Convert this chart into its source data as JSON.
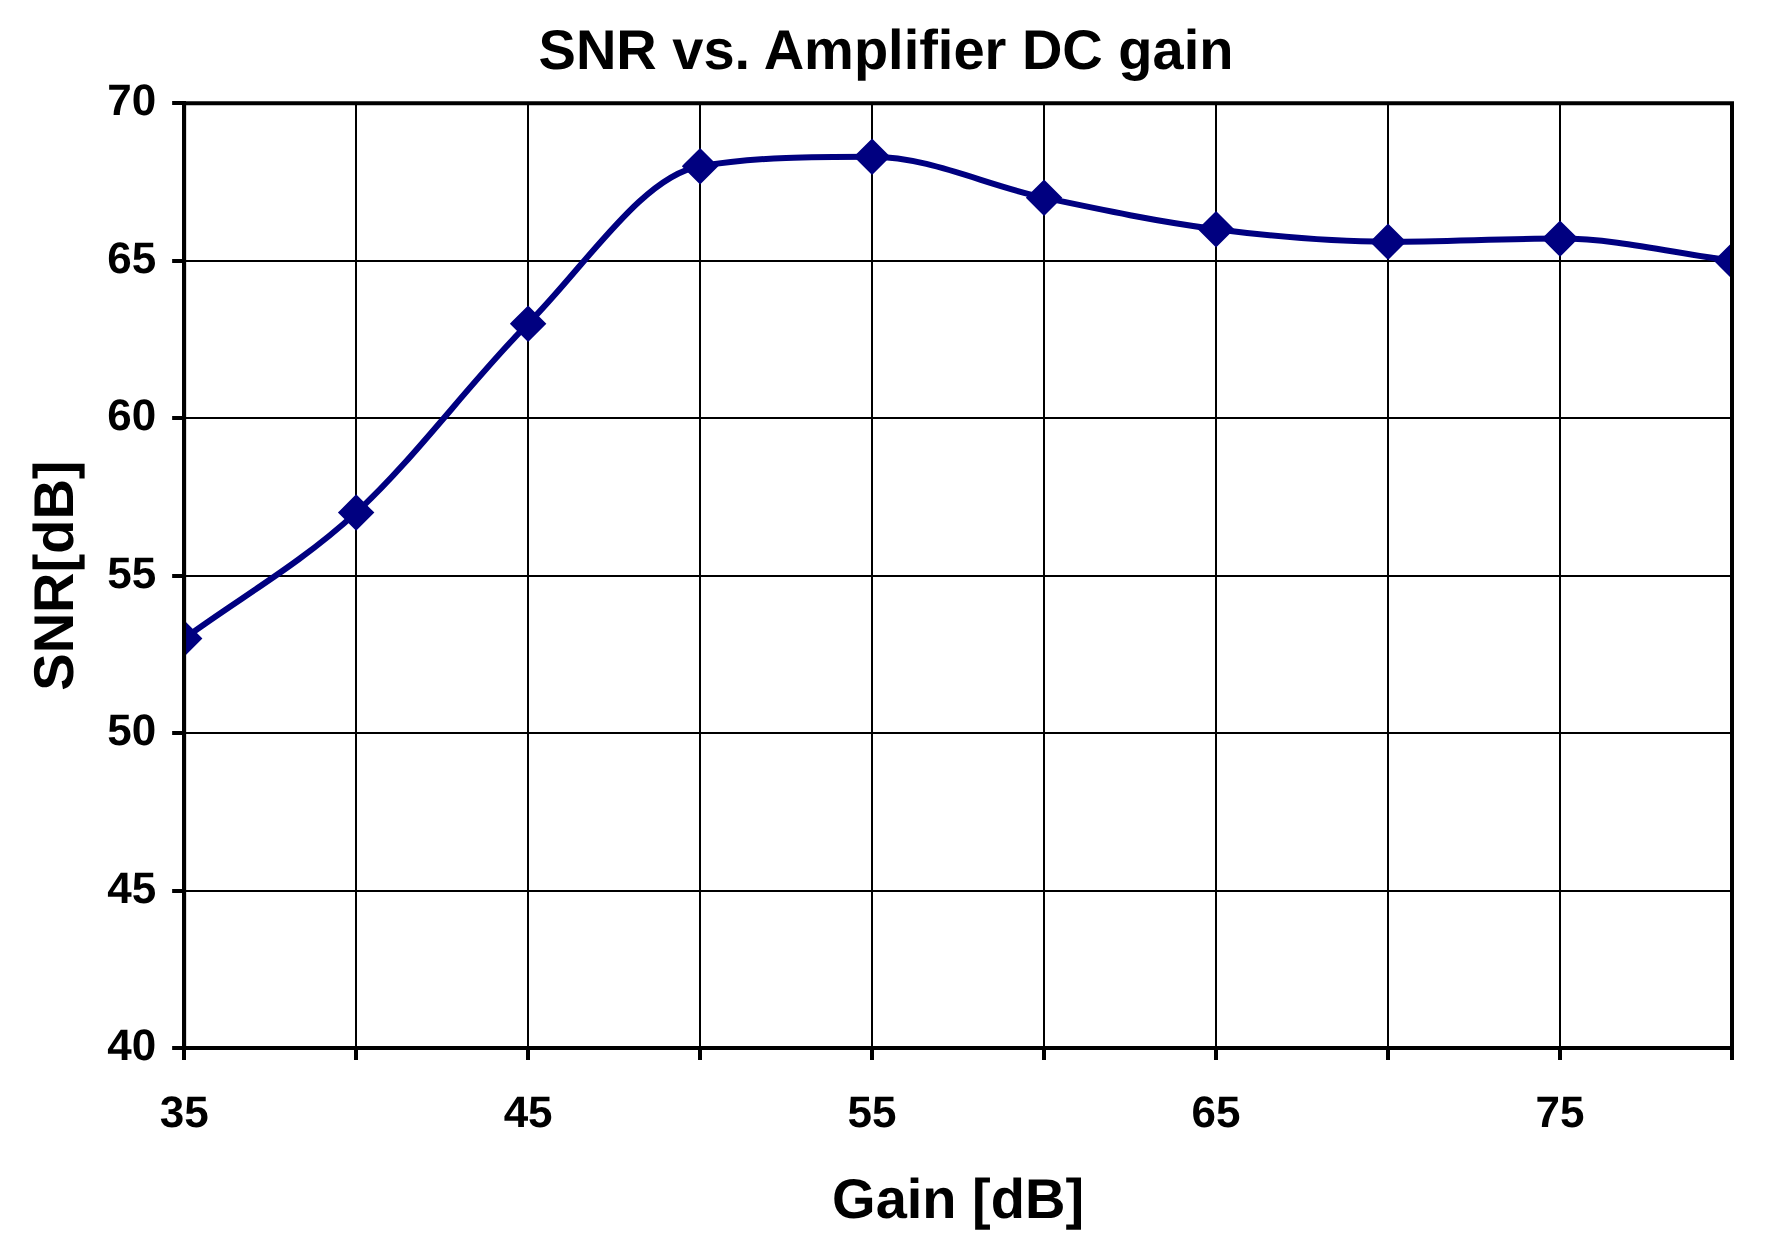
{
  "chart_data": {
    "type": "line",
    "title": "SNR vs. Amplifier DC gain",
    "xlabel": "Gain [dB]",
    "ylabel": "SNR[dB]",
    "x": [
      35,
      40,
      45,
      50,
      55,
      60,
      65,
      70,
      75,
      80
    ],
    "series": [
      {
        "color": "#000080",
        "values": [
          53,
          57,
          63,
          68,
          68.3,
          67,
          66,
          65.6,
          65.7,
          65
        ]
      }
    ],
    "xlim": [
      35,
      80
    ],
    "xticks": [
      35,
      {
        "value": 40,
        "label": null
      },
      45,
      {
        "value": 50,
        "label": null
      },
      55,
      {
        "value": 60,
        "label": null
      },
      65,
      {
        "value": 70,
        "label": null
      },
      75,
      {
        "value": 80,
        "label": null
      }
    ],
    "ylim": [
      40,
      70
    ],
    "yticks": [
      40,
      45,
      50,
      55,
      60,
      65,
      70
    ],
    "grid": true,
    "legend": false,
    "marker": "diamond",
    "line_style": "solid"
  }
}
